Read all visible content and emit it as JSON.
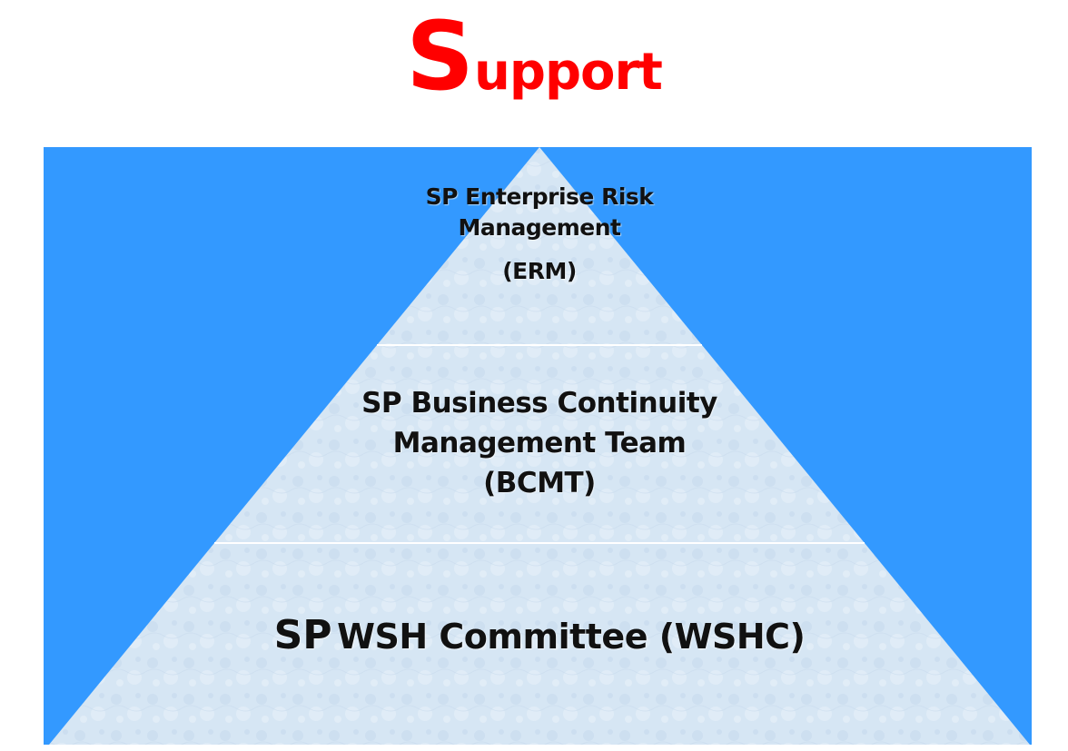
{
  "title": {
    "first_letter": "S",
    "rest": "upport"
  },
  "colors": {
    "title": "#ff0000",
    "background_panel": "#3399ff",
    "pyramid_fill": "#d6e6f4",
    "divider": "#ffffff",
    "text": "#111111"
  },
  "pyramid": {
    "top_tier": {
      "line1": "SP Enterprise Risk",
      "line2": "Management",
      "abbr": "(ERM)"
    },
    "middle_tier": {
      "line1": "SP Business Continuity",
      "line2": "Management Team",
      "abbr": "(BCMT)"
    },
    "bottom_tier": {
      "prefix": "SP",
      "text": "WSH Committee (WSHC)"
    }
  }
}
